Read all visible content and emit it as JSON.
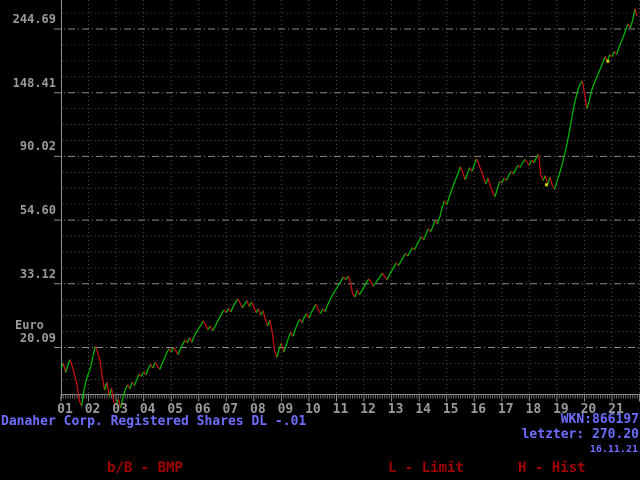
{
  "chart_data": {
    "type": "line",
    "title": "Danaher Corp. Registered Shares DL -.01",
    "y_unit": "Euro",
    "y_scale": "log",
    "y_tick_labels": [
      "244.69",
      "148.41",
      "90.02",
      "54.60",
      "33.12",
      "20.09"
    ],
    "y_tick_values": [
      244.69,
      148.41,
      90.02,
      54.6,
      33.12,
      20.09
    ],
    "x_tick_labels": [
      "01",
      "02",
      "03",
      "04",
      "05",
      "06",
      "07",
      "08",
      "09",
      "10",
      "11",
      "12",
      "13",
      "14",
      "15",
      "16",
      "17",
      "18",
      "19",
      "20",
      "21"
    ],
    "start_year": 2001,
    "points_per_year": 12,
    "prices_by_year": [
      [
        17.0,
        17.8,
        16.5,
        17.5,
        18.3,
        17.2,
        16.1,
        14.9,
        13.2,
        12.7,
        14.3,
        15.6
      ],
      [
        16.4,
        17.3,
        18.9,
        20.3,
        19.3,
        18.1,
        15.9,
        14.4,
        15.3,
        13.7,
        14.6,
        13.1
      ],
      [
        12.8,
        13.4,
        12.5,
        13.6,
        14.4,
        15.0,
        14.5,
        15.3,
        14.9,
        15.6,
        16.3,
        16.0
      ],
      [
        16.6,
        16.2,
        17.0,
        17.6,
        17.1,
        17.9,
        17.4,
        16.9,
        17.7,
        18.4,
        19.2,
        19.9
      ],
      [
        19.4,
        20.1,
        19.6,
        19.0,
        19.8,
        20.6,
        21.3,
        20.8,
        21.7,
        20.9,
        21.9,
        22.7
      ],
      [
        23.3,
        24.0,
        24.8,
        24.0,
        23.1,
        23.8,
        22.9,
        23.6,
        24.5,
        25.3,
        26.2,
        27.0
      ],
      [
        26.4,
        27.3,
        26.6,
        27.7,
        28.6,
        29.4,
        28.5,
        27.4,
        28.3,
        29.0,
        27.7,
        28.7
      ],
      [
        27.6,
        26.4,
        27.2,
        25.9,
        26.8,
        25.1,
        23.8,
        24.9,
        22.7,
        19.7,
        18.6,
        19.9
      ],
      [
        20.8,
        19.4,
        20.3,
        21.6,
        22.6,
        21.9,
        23.1,
        24.2,
        25.1,
        24.4,
        25.5,
        26.2
      ],
      [
        25.3,
        26.4,
        27.3,
        28.2,
        27.1,
        26.2,
        27.2,
        26.6,
        27.9,
        29.0,
        30.1,
        31.1
      ],
      [
        31.9,
        33.0,
        33.8,
        35.0,
        34.2,
        35.2,
        33.6,
        30.7,
        29.8,
        31.5,
        30.4,
        31.3
      ],
      [
        32.3,
        33.4,
        34.4,
        33.6,
        32.5,
        33.3,
        34.2,
        35.0,
        36.0,
        35.0,
        34.2,
        35.4
      ],
      [
        36.6,
        37.8,
        39.0,
        38.2,
        39.4,
        40.7,
        42.0,
        41.2,
        42.5,
        44.0,
        43.2,
        45.0
      ],
      [
        46.5,
        48.0,
        46.8,
        49.0,
        51.0,
        49.8,
        52.0,
        54.5,
        53.0,
        56.0,
        60.0,
        63.5
      ],
      [
        61.5,
        65.0,
        68.5,
        72.0,
        75.5,
        79.0,
        83.0,
        79.5,
        75.0,
        78.5,
        82.5,
        80.0
      ],
      [
        84.0,
        88.5,
        84.5,
        80.5,
        76.5,
        72.5,
        76.0,
        71.5,
        68.0,
        65.5,
        69.5,
        74.0
      ],
      [
        73.0,
        76.0,
        74.5,
        77.5,
        80.0,
        78.5,
        81.0,
        84.0,
        82.5,
        85.5,
        88.0,
        86.0
      ],
      [
        84.0,
        87.5,
        85.5,
        89.0,
        91.5,
        78.0,
        74.5,
        77.5,
        72.0,
        76.5,
        71.5,
        69.5
      ],
      [
        74.0,
        78.0,
        83.0,
        89.0,
        96.0,
        105.0,
        116.0,
        128.0,
        140.0,
        150.0,
        158.0,
        163.0
      ],
      [
        148.0,
        131.0,
        138.0,
        150.0,
        158.0,
        165.0,
        172.0,
        180.0,
        188.0,
        197.0,
        190.0,
        200.0
      ],
      [
        197.0,
        205.0,
        200.0,
        212.0,
        221.0,
        231.0,
        243.0,
        255.0,
        247.0,
        262.0,
        287.0,
        270.2
      ]
    ],
    "event_markers": [
      {
        "year": 2018.62,
        "price": 72.0
      },
      {
        "year": 2020.85,
        "price": 190.0
      }
    ],
    "last_price": 270.2,
    "grid": "dotted yearly verticals, log-step horizontals"
  },
  "footer": {
    "wkn": "WKN:866197",
    "letzter": "letzter: 270.20",
    "date": "16.11.21",
    "menu_items": [
      "b/B - BMP",
      "L - Limit",
      "H - Hist"
    ]
  },
  "colors": {
    "background": "#000000",
    "up_green": "#00c000",
    "down_red": "#d01010",
    "title_blue": "#6e6eff",
    "menu_red": "#a00000",
    "label_gray": "#9a9a9a",
    "grid_minor": "#4e4e4e",
    "grid_major": "#8a8a8a",
    "axis_gray": "#909090",
    "marker_yellow": "#cccc00"
  }
}
